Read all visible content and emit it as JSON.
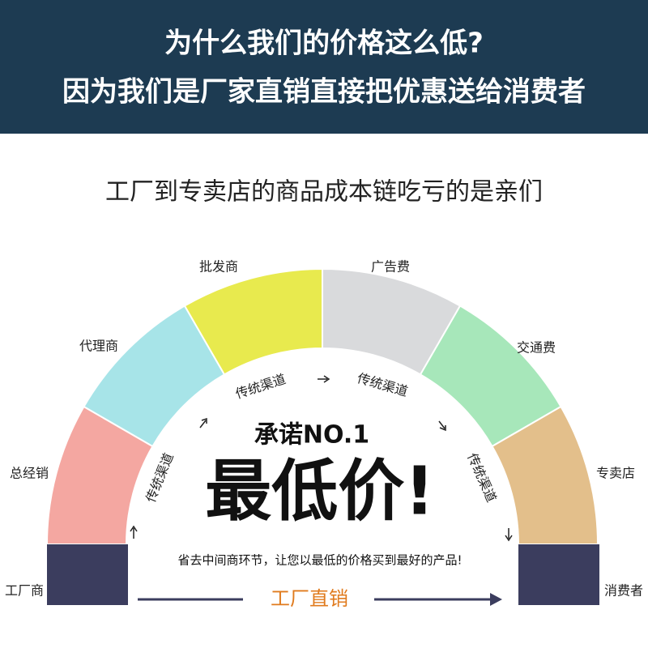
{
  "header": {
    "lines": [
      "为什么我们的价格这么低?",
      "因为我们是厂家直销直接把优惠送给消费者"
    ]
  },
  "subtitle": "工厂到专卖店的商品成本链吃亏的是亲们",
  "segments": [
    "总经销",
    "代理商",
    "批发商",
    "广告费",
    "交通费",
    "专卖店"
  ],
  "ends": [
    "工厂商",
    "消费者"
  ],
  "channel_labels": [
    "传统渠道",
    "传统渠道",
    "传统渠道",
    "传统渠道"
  ],
  "center": {
    "promise": "承诺NO.1",
    "headline": "最低价!",
    "note": "省去中间商环节，让您以最低的价格买到最好的产品!",
    "footer": "工厂直销"
  }
}
